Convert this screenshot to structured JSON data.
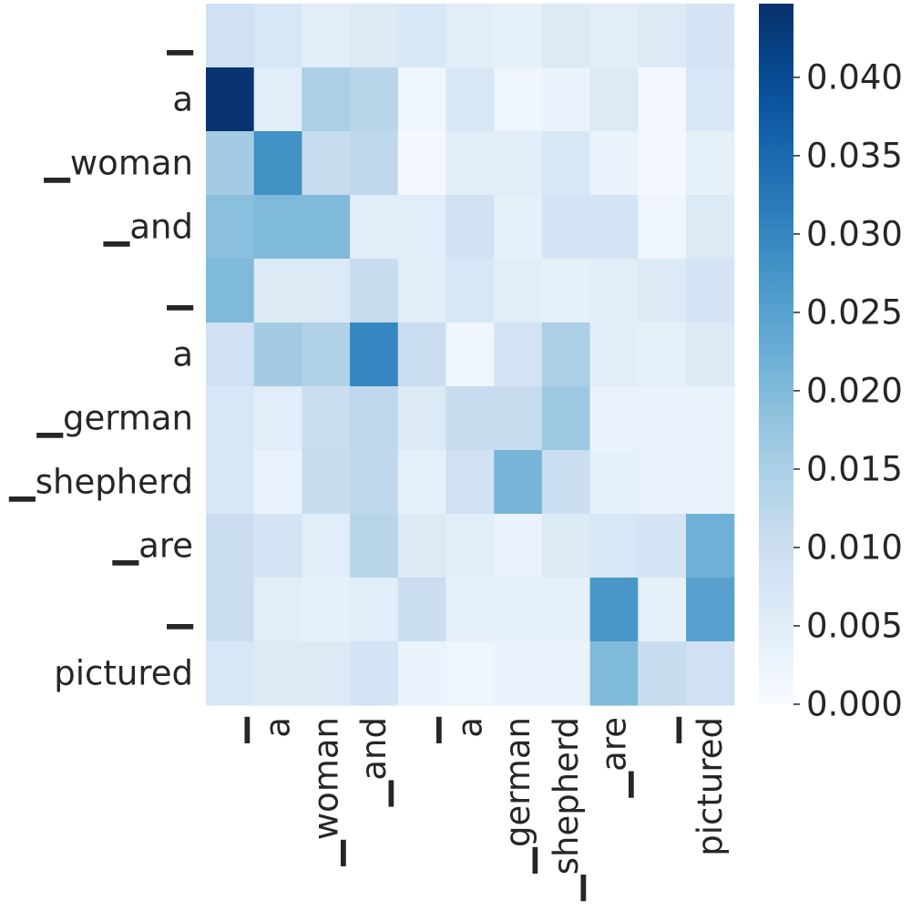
{
  "chart_data": {
    "type": "heatmap",
    "title": "",
    "xlabel": "",
    "ylabel": "",
    "x_labels": [
      "▁",
      "a",
      "▁woman",
      "▁and",
      "▁",
      "a",
      "▁german",
      "▁shepherd",
      "▁are",
      "▁",
      "pictured"
    ],
    "y_labels": [
      "▁",
      "a",
      "▁woman",
      "▁and",
      "▁",
      "a",
      "▁german",
      "▁shepherd",
      "▁are",
      "▁",
      "pictured"
    ],
    "values": [
      [
        0.009,
        0.007,
        0.005,
        0.006,
        0.007,
        0.005,
        0.004,
        0.006,
        0.005,
        0.006,
        0.008
      ],
      [
        0.044,
        0.005,
        0.015,
        0.013,
        0.002,
        0.007,
        0.002,
        0.003,
        0.006,
        0.001,
        0.007
      ],
      [
        0.016,
        0.028,
        0.011,
        0.012,
        0.001,
        0.005,
        0.005,
        0.007,
        0.003,
        0.001,
        0.004
      ],
      [
        0.019,
        0.02,
        0.02,
        0.005,
        0.005,
        0.009,
        0.004,
        0.008,
        0.008,
        0.002,
        0.006
      ],
      [
        0.02,
        0.006,
        0.006,
        0.011,
        0.005,
        0.007,
        0.005,
        0.004,
        0.005,
        0.006,
        0.008
      ],
      [
        0.009,
        0.016,
        0.014,
        0.03,
        0.01,
        0.002,
        0.008,
        0.015,
        0.005,
        0.004,
        0.006
      ],
      [
        0.007,
        0.005,
        0.01,
        0.012,
        0.006,
        0.011,
        0.011,
        0.017,
        0.003,
        0.003,
        0.003
      ],
      [
        0.007,
        0.003,
        0.011,
        0.012,
        0.004,
        0.009,
        0.021,
        0.01,
        0.004,
        0.003,
        0.003
      ],
      [
        0.01,
        0.008,
        0.005,
        0.013,
        0.006,
        0.005,
        0.003,
        0.006,
        0.007,
        0.008,
        0.022
      ],
      [
        0.01,
        0.005,
        0.004,
        0.005,
        0.01,
        0.004,
        0.004,
        0.004,
        0.027,
        0.004,
        0.025
      ],
      [
        0.007,
        0.006,
        0.006,
        0.008,
        0.003,
        0.002,
        0.003,
        0.003,
        0.02,
        0.011,
        0.009
      ]
    ],
    "vmin": 0.0,
    "vmax": 0.0447,
    "colormap": "Blues",
    "colorbar": {
      "ticks": [
        0.0,
        0.005,
        0.01,
        0.015,
        0.02,
        0.025,
        0.03,
        0.035,
        0.04
      ],
      "tick_labels": [
        "0.000",
        "0.005",
        "0.010",
        "0.015",
        "0.020",
        "0.025",
        "0.030",
        "0.035",
        "0.040"
      ]
    },
    "grid": false,
    "legend": "colorbar-right"
  }
}
